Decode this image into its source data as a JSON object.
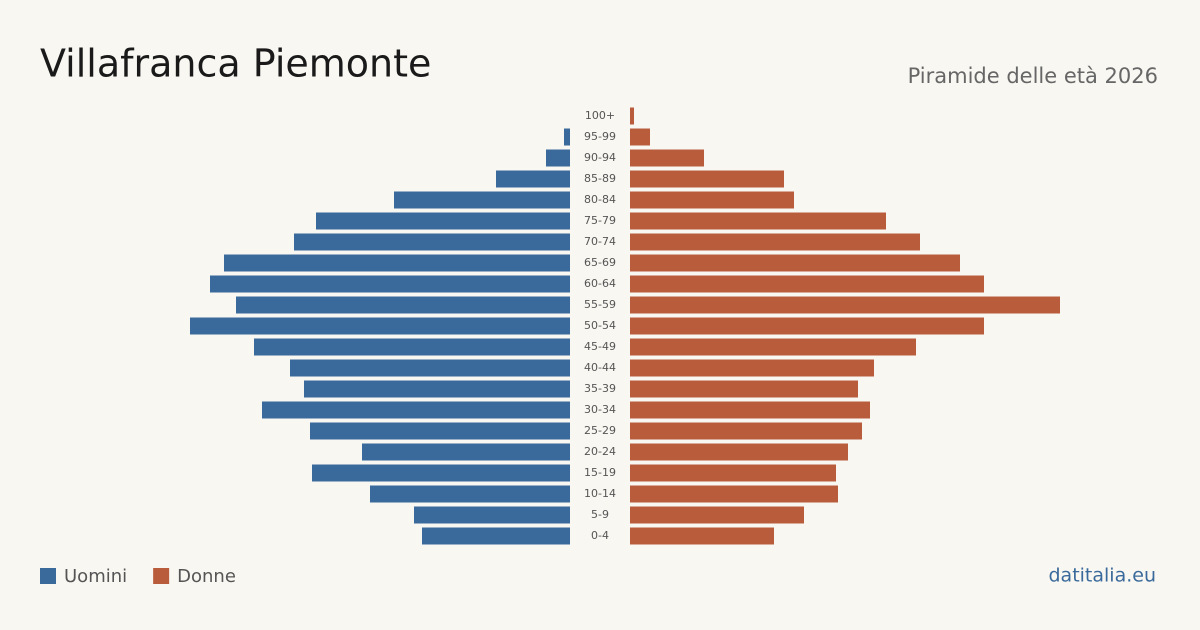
{
  "chart_data": {
    "type": "pyramid",
    "title": "Villafranca Piemonte",
    "subtitle": "Piramide delle età 2026",
    "source": "datitalia.eu",
    "categories": [
      "100+",
      "95-99",
      "90-94",
      "85-89",
      "80-84",
      "75-79",
      "70-74",
      "65-69",
      "60-64",
      "55-59",
      "50-54",
      "45-49",
      "40-44",
      "35-39",
      "30-34",
      "25-29",
      "20-24",
      "15-19",
      "10-14",
      "5-9",
      "0-4"
    ],
    "series": [
      {
        "name": "Uomini",
        "color": "#3a6a9b",
        "values": [
          0,
          3,
          12,
          37,
          88,
          127,
          138,
          173,
          180,
          167,
          190,
          158,
          140,
          133,
          154,
          130,
          104,
          129,
          100,
          78,
          74
        ]
      },
      {
        "name": "Donne",
        "color": "#b95c3c",
        "values": [
          2,
          10,
          37,
          77,
          82,
          128,
          145,
          165,
          177,
          215,
          177,
          143,
          122,
          114,
          120,
          116,
          109,
          103,
          104,
          87,
          72
        ]
      }
    ]
  }
}
